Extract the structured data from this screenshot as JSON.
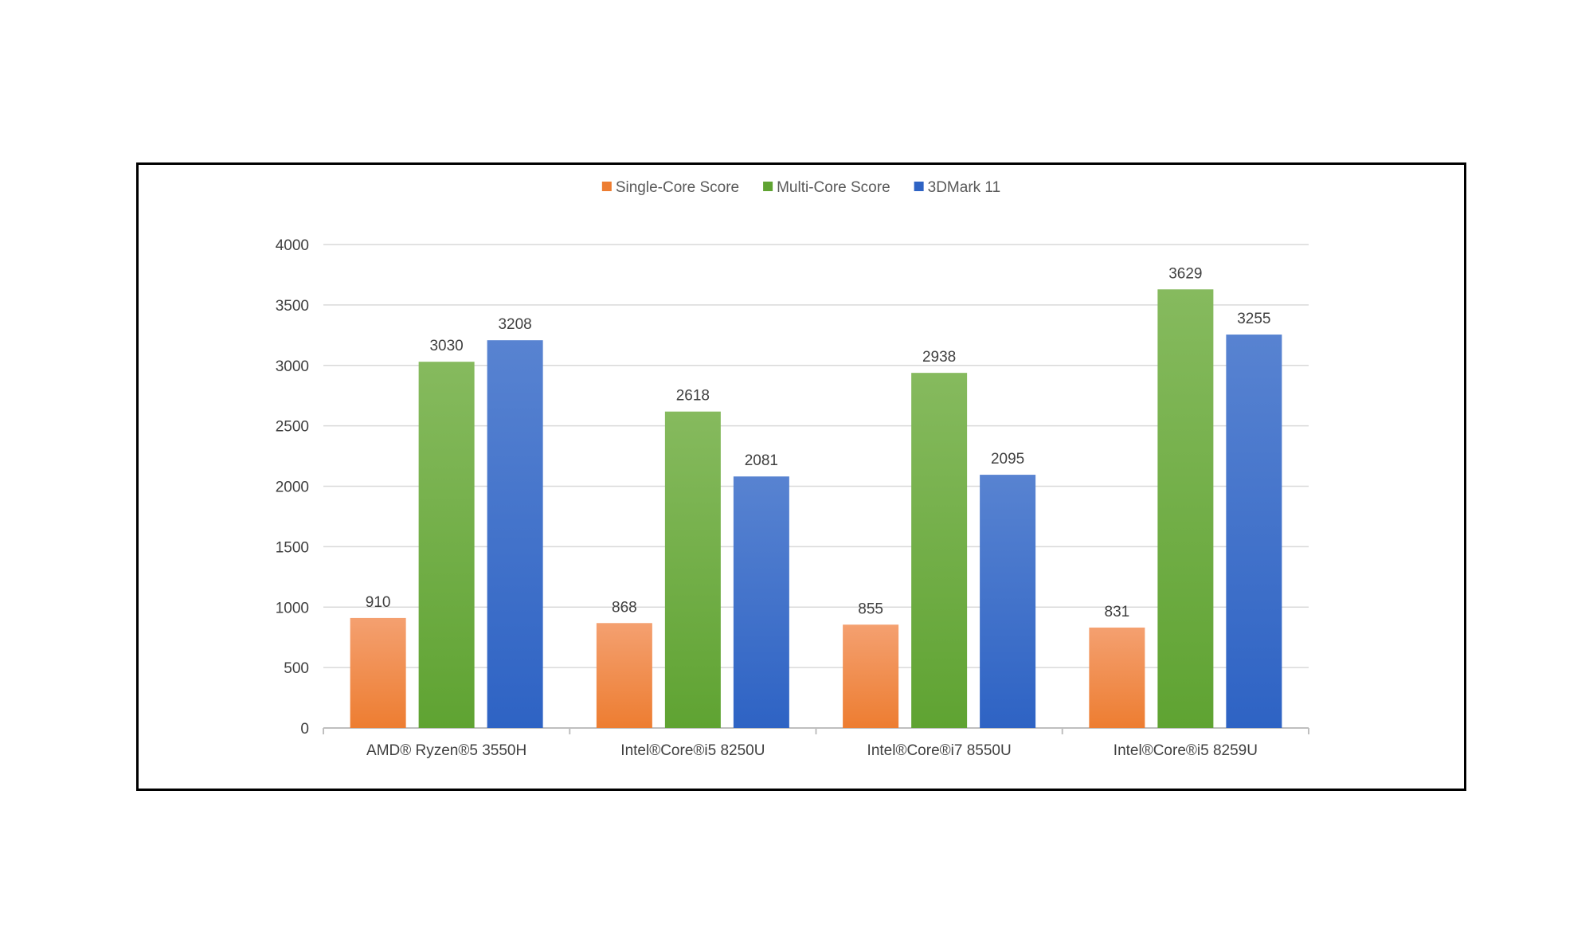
{
  "chart_data": {
    "type": "bar",
    "title": "",
    "xlabel": "",
    "ylabel": "",
    "categories": [
      "AMD® Ryzen®5 3550H",
      "Intel®Core®i5 8250U",
      "Intel®Core®i7 8550U",
      "Intel®Core®i5 8259U"
    ],
    "series": [
      {
        "name": "Single-Core Score",
        "values": [
          910,
          868,
          855,
          831
        ],
        "color": "#ED7D31",
        "color_light": "#F4A070"
      },
      {
        "name": "Multi-Core Score",
        "values": [
          3030,
          2618,
          2938,
          3629
        ],
        "color": "#5FA332",
        "color_light": "#86BA5E"
      },
      {
        "name": "3DMark 11",
        "values": [
          3208,
          2081,
          2095,
          3255
        ],
        "color": "#2E63C4",
        "color_light": "#5883D1"
      }
    ],
    "ylim": [
      0,
      4000
    ],
    "yticks": [
      0,
      500,
      1000,
      1500,
      2000,
      2500,
      3000,
      3500,
      4000
    ],
    "grid": true,
    "legend": "top-center",
    "data_labels": true
  }
}
